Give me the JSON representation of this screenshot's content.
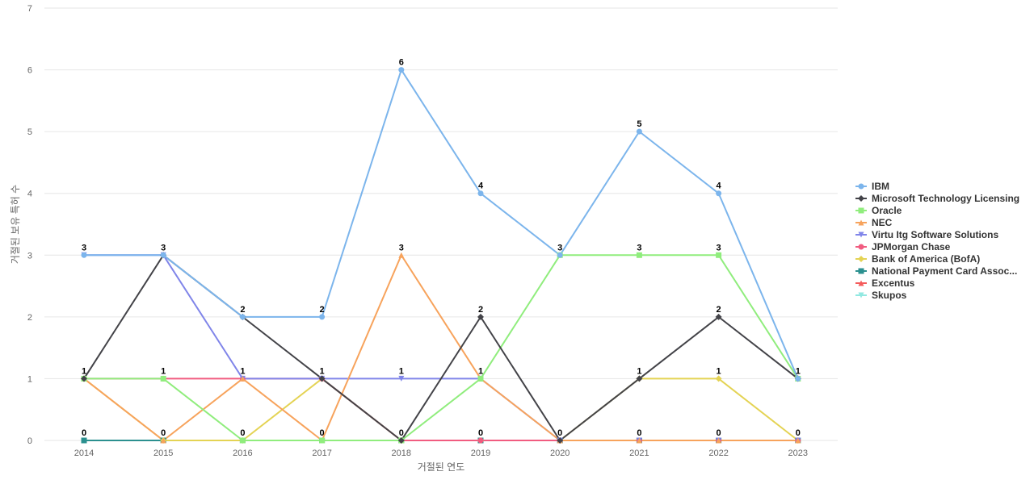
{
  "chart_data": {
    "type": "line",
    "title": "",
    "xlabel": "거절된 연도",
    "ylabel": "거절된 보유 특허 수",
    "ylim": [
      0,
      7
    ],
    "yticks": [
      0,
      1,
      2,
      3,
      4,
      5,
      6,
      7
    ],
    "grid": true,
    "legend_position": "right",
    "categories": [
      "2014",
      "2015",
      "2016",
      "2017",
      "2018",
      "2019",
      "2020",
      "2021",
      "2022",
      "2023"
    ],
    "series": [
      {
        "name": "IBM",
        "color": "#7cb5ec",
        "marker": "circle",
        "values": [
          3,
          3,
          2,
          2,
          6,
          4,
          3,
          5,
          4,
          1
        ]
      },
      {
        "name": "Microsoft Technology Licensing",
        "color": "#434348",
        "marker": "diamond",
        "values": [
          1,
          3,
          2,
          1,
          0,
          2,
          0,
          1,
          2,
          1
        ]
      },
      {
        "name": "Oracle",
        "color": "#90ed7d",
        "marker": "square",
        "values": [
          1,
          1,
          0,
          0,
          0,
          1,
          3,
          3,
          3,
          1
        ]
      },
      {
        "name": "NEC",
        "color": "#f7a35c",
        "marker": "triangle",
        "values": [
          1,
          0,
          1,
          0,
          3,
          1,
          0,
          0,
          0,
          0
        ]
      },
      {
        "name": "Virtu Itg Software Solutions",
        "color": "#8085e9",
        "marker": "triangle-down",
        "values": [
          3,
          3,
          1,
          1,
          1,
          1,
          0,
          0,
          0,
          0
        ]
      },
      {
        "name": "JPMorgan Chase",
        "color": "#f15c80",
        "marker": "circle",
        "values": [
          1,
          1,
          1,
          1,
          0,
          0,
          0,
          0,
          0,
          0
        ]
      },
      {
        "name": "Bank of America (BofA)",
        "color": "#e4d354",
        "marker": "diamond",
        "values": [
          1,
          0,
          0,
          1,
          0,
          0,
          0,
          1,
          1,
          0
        ]
      },
      {
        "name": "National Payment Card Assoc...",
        "color": "#2b908f",
        "marker": "square",
        "values": [
          0,
          0,
          0,
          0,
          0,
          0,
          0,
          0,
          0,
          0
        ]
      },
      {
        "name": "Excentus",
        "color": "#f45b5b",
        "marker": "triangle",
        "values": [
          0,
          0,
          0,
          0,
          0,
          0,
          0,
          0,
          0,
          0
        ]
      },
      {
        "name": "Skupos",
        "color": "#91e8e1",
        "marker": "triangle-down",
        "values": [
          0,
          0,
          0,
          0,
          0,
          0,
          0,
          0,
          0,
          0
        ]
      }
    ],
    "data_labels": [
      {
        "category": "2014",
        "values": [
          "3",
          "1",
          "0"
        ]
      },
      {
        "category": "2015",
        "values": [
          "3",
          "1",
          "0"
        ]
      },
      {
        "category": "2016",
        "values": [
          "2",
          "1",
          "0"
        ]
      },
      {
        "category": "2017",
        "values": [
          "2",
          "1",
          "0"
        ]
      },
      {
        "category": "2018",
        "values": [
          "6",
          "3",
          "1",
          "0"
        ]
      },
      {
        "category": "2019",
        "values": [
          "4",
          "2",
          "1",
          "0"
        ]
      },
      {
        "category": "2020",
        "values": [
          "3",
          "0"
        ]
      },
      {
        "category": "2021",
        "values": [
          "5",
          "3",
          "1",
          "0"
        ]
      },
      {
        "category": "2022",
        "values": [
          "4",
          "3",
          "2",
          "1",
          "0"
        ]
      },
      {
        "category": "2023",
        "values": [
          "1",
          "0"
        ]
      }
    ]
  }
}
